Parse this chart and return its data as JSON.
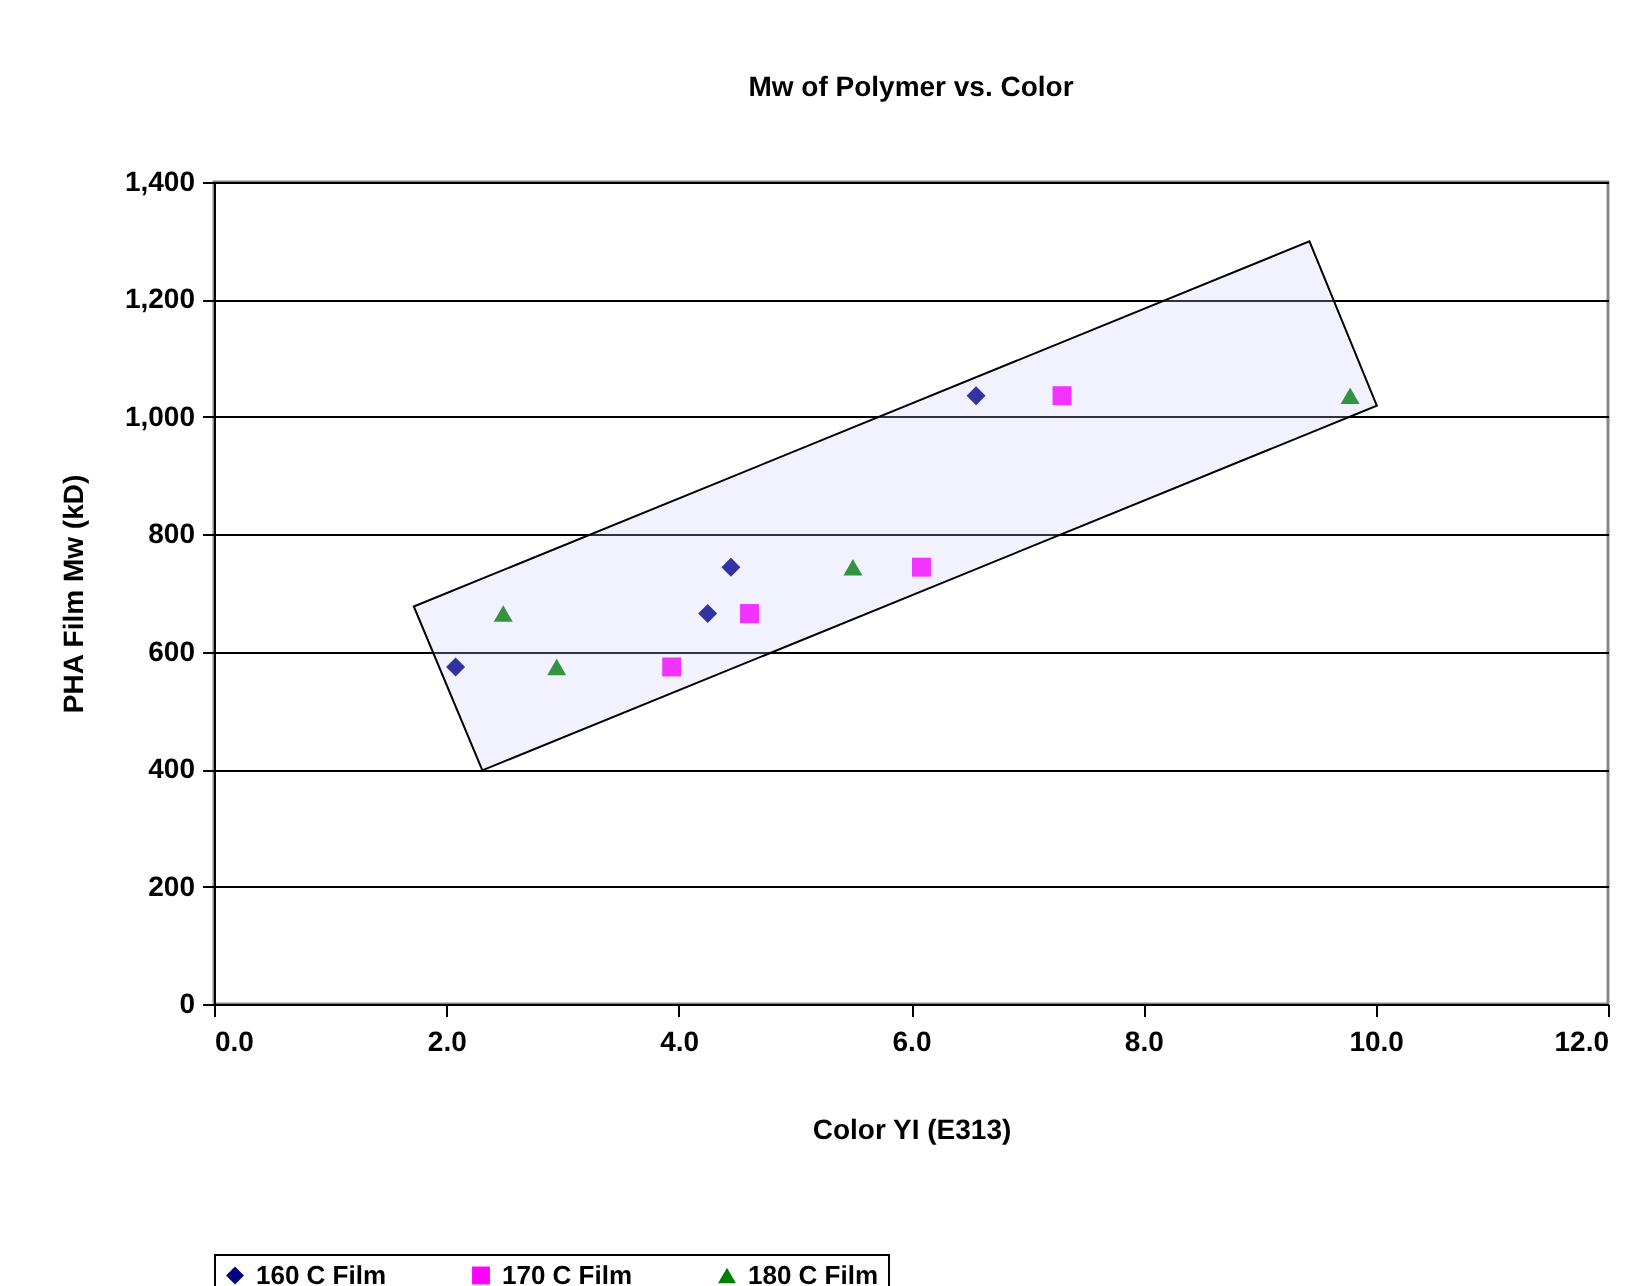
{
  "chart_data": {
    "type": "scatter",
    "title": "Mw of Polymer vs. Color",
    "xlabel": "Color YI (E313)",
    "ylabel": "PHA Film Mw (kD)",
    "series": [
      {
        "name": "160 C Film",
        "color": "#000080",
        "marker": "diamond",
        "x": [
          2.08,
          4.25,
          4.45,
          6.56
        ],
        "values": [
          574,
          665,
          744,
          1036
        ]
      },
      {
        "name": "170 C Film",
        "color": "#ff00ff",
        "marker": "square",
        "x": [
          3.94,
          4.61,
          6.09,
          7.3
        ],
        "values": [
          574,
          665,
          744,
          1036
        ]
      },
      {
        "name": "180 C Film",
        "color": "#008000",
        "marker": "triangle",
        "x": [
          2.49,
          2.95,
          5.5,
          9.78
        ],
        "values": [
          665,
          574,
          744,
          1036
        ]
      }
    ],
    "xlim": [
      0,
      12
    ],
    "xticks": [
      {
        "value": 0,
        "label": "0.0"
      },
      {
        "value": 2,
        "label": "2.0"
      },
      {
        "value": 4,
        "label": "4.0"
      },
      {
        "value": 6,
        "label": "6.0"
      },
      {
        "value": 8,
        "label": "8.0"
      },
      {
        "value": 10,
        "label": "10.0"
      },
      {
        "value": 12,
        "label": "12.0"
      }
    ],
    "ylim": [
      0,
      1400
    ],
    "yticks": [
      0,
      200,
      400,
      600,
      800,
      {
        "value": 1000,
        "label": "1,000"
      },
      {
        "value": 1200,
        "label": "1,200"
      },
      {
        "value": 1400,
        "label": "1,400"
      }
    ],
    "grid": "y",
    "legend": "bottom"
  }
}
